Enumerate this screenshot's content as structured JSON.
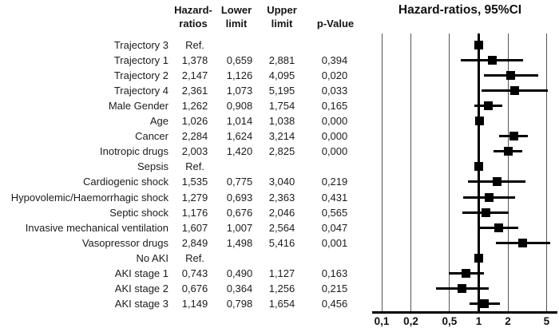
{
  "table": {
    "headers": {
      "hr_line1": "Hazard-",
      "hr_line2": "ratios",
      "lower_line1": "Lower",
      "lower_line2": "limit",
      "upper_line1": "Upper",
      "upper_line2": "limit",
      "p": "p-Value"
    }
  },
  "chart_data": {
    "type": "forest",
    "title": "Hazard-ratios, 95%CI",
    "xscale": "log",
    "xlim": [
      0.1,
      5
    ],
    "reference_line": 1,
    "decimal_separator": ",",
    "grid": true,
    "xticks": [
      {
        "value": 0.1,
        "label": "0,1"
      },
      {
        "value": 0.2,
        "label": "0,2"
      },
      {
        "value": 0.5,
        "label": "0,5"
      },
      {
        "value": 1,
        "label": "1"
      },
      {
        "value": 2,
        "label": "2"
      },
      {
        "value": 5,
        "label": "5"
      }
    ],
    "rows": [
      {
        "label": "Trajectory 3",
        "hr_text": "Ref."
      },
      {
        "label": "Trajectory 1",
        "hr": 1.378,
        "lower": 0.659,
        "upper": 2.881,
        "p": 0.394
      },
      {
        "label": "Trajectory 2",
        "hr": 2.147,
        "lower": 1.126,
        "upper": 4.095,
        "p": 0.02
      },
      {
        "label": "Trajectory 4",
        "hr": 2.361,
        "lower": 1.073,
        "upper": 5.195,
        "p": 0.033
      },
      {
        "label": "Male Gender",
        "hr": 1.262,
        "lower": 0.908,
        "upper": 1.754,
        "p": 0.165
      },
      {
        "label": "Age",
        "hr": 1.026,
        "lower": 1.014,
        "upper": 1.038,
        "p": 0.0
      },
      {
        "label": "Cancer",
        "hr": 2.284,
        "lower": 1.624,
        "upper": 3.214,
        "p": 0.0
      },
      {
        "label": "Inotropic drugs",
        "hr": 2.003,
        "lower": 1.42,
        "upper": 2.825,
        "p": 0.0
      },
      {
        "label": "Sepsis",
        "hr_text": "Ref."
      },
      {
        "label": "Cardiogenic shock",
        "hr": 1.535,
        "lower": 0.775,
        "upper": 3.04,
        "p": 0.219
      },
      {
        "label": "Hypovolemic/Haemorrhagic shock",
        "hr": 1.279,
        "lower": 0.693,
        "upper": 2.363,
        "p": 0.431
      },
      {
        "label": "Septic shock",
        "hr": 1.176,
        "lower": 0.676,
        "upper": 2.046,
        "p": 0.565
      },
      {
        "label": "Invasive mechanical ventilation",
        "hr": 1.607,
        "lower": 1.007,
        "upper": 2.564,
        "p": 0.047
      },
      {
        "label": "Vasopressor drugs",
        "hr": 2.849,
        "lower": 1.498,
        "upper": 5.416,
        "p": 0.001
      },
      {
        "label": "No AKI",
        "hr_text": "Ref."
      },
      {
        "label": "AKI stage 1",
        "hr": 0.743,
        "lower": 0.49,
        "upper": 1.127,
        "p": 0.163
      },
      {
        "label": "AKI stage 2",
        "hr": 0.676,
        "lower": 0.364,
        "upper": 1.256,
        "p": 0.215
      },
      {
        "label": "AKI stage 3",
        "hr": 1.149,
        "lower": 0.798,
        "upper": 1.654,
        "p": 0.456
      }
    ],
    "colors": {
      "marker": "#000000",
      "ci_line": "#000000",
      "reference_line": "#000000",
      "gridline": "#555555",
      "axis": "#000000",
      "text": "#1c1c1c"
    }
  }
}
